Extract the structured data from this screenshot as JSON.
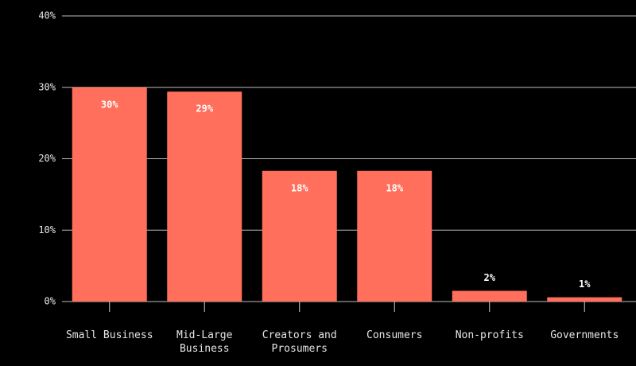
{
  "chart_data": {
    "type": "bar",
    "categories": [
      "Small Business",
      "Mid-Large Business",
      "Creators and Prosumers",
      "Consumers",
      "Non-profits",
      "Governments"
    ],
    "values": [
      30,
      29.4,
      18.3,
      18.3,
      1.5,
      0.6
    ],
    "value_labels": [
      "30%",
      "29%",
      "18%",
      "18%",
      "2%",
      "1%"
    ],
    "color": "#ff6f5b",
    "ylim": [
      0,
      40
    ],
    "yticks": [
      {
        "value": 0,
        "label": "0%"
      },
      {
        "value": 10,
        "label": "10%"
      },
      {
        "value": 20,
        "label": "20%"
      },
      {
        "value": 30,
        "label": "30%"
      },
      {
        "value": 40,
        "label": "40%"
      }
    ],
    "grid": true
  }
}
